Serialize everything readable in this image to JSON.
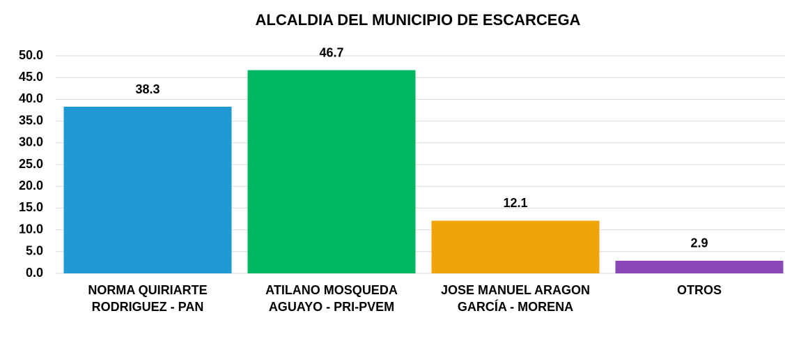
{
  "chart_data": {
    "type": "bar",
    "title": "ALCALDIA DEL MUNICIPIO DE ESCARCEGA",
    "categories": [
      "NORMA QUIRIARTE RODRIGUEZ - PAN",
      "ATILANO MOSQUEDA AGUAYO - PRI-PVEM",
      "JOSE MANUEL ARAGON GARCÍA - MORENA",
      "OTROS"
    ],
    "values": [
      38.3,
      46.7,
      12.1,
      2.9
    ],
    "colors": [
      "#1f9ad6",
      "#00b862",
      "#f0a30a",
      "#8a47b8"
    ],
    "ylim": [
      0,
      50
    ],
    "yticks": [
      {
        "value": 0,
        "label": "0.0"
      },
      {
        "value": 5,
        "label": "5.0"
      },
      {
        "value": 10,
        "label": "10.0"
      },
      {
        "value": 15,
        "label": "15.0"
      },
      {
        "value": 20,
        "label": "20.0"
      },
      {
        "value": 25,
        "label": "25.0"
      },
      {
        "value": 30,
        "label": "30.0"
      },
      {
        "value": 35,
        "label": "35.0"
      },
      {
        "value": 40,
        "label": "40.0"
      },
      {
        "value": 45,
        "label": "45.0"
      },
      {
        "value": 50,
        "label": "50.0"
      }
    ],
    "grid": true
  }
}
